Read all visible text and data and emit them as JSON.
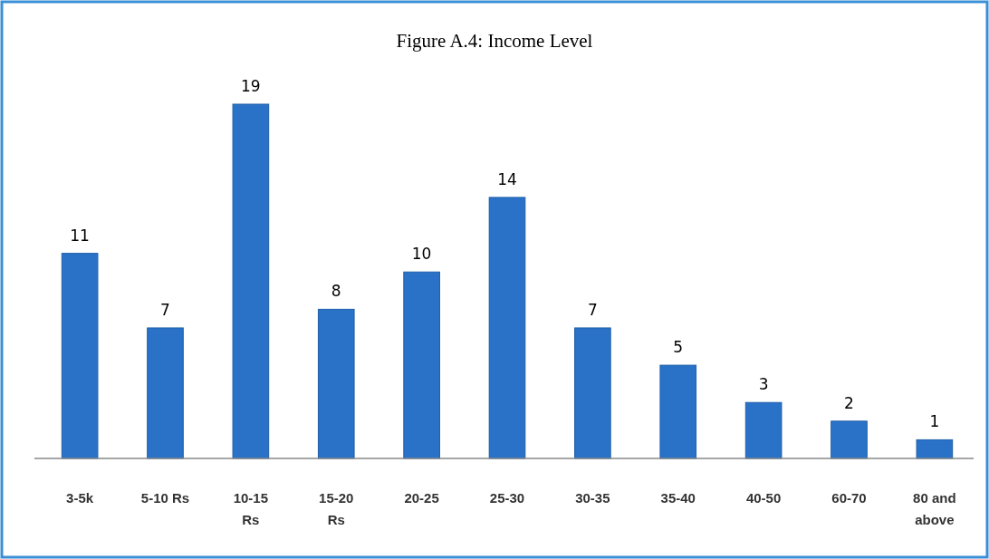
{
  "chart_data": {
    "type": "bar",
    "title": "Figure A.4: Income Level",
    "categories": [
      "3-5k",
      "5-10 Rs",
      "10-15 Rs",
      "15-20 Rs",
      "20-25",
      "25-30",
      "30-35",
      "35-40",
      "40-50",
      "60-70",
      "80 and above"
    ],
    "values": [
      11,
      7,
      19,
      8,
      10,
      14,
      7,
      5,
      3,
      2,
      1
    ],
    "color": "#2a72c8",
    "data_labels": true
  }
}
